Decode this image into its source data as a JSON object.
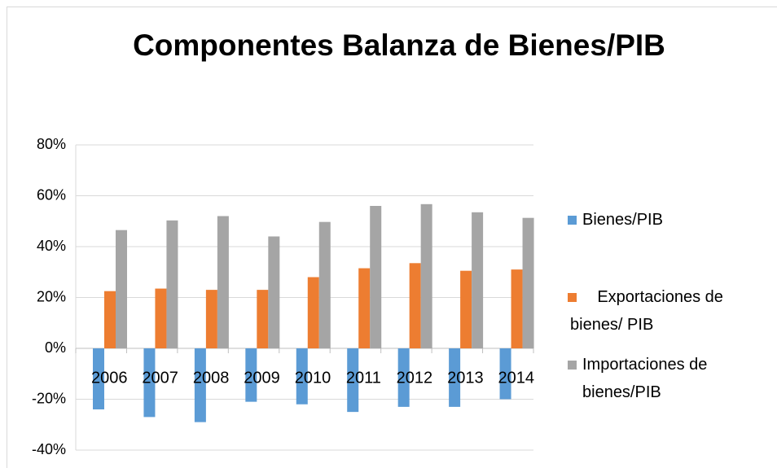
{
  "chart_data": {
    "type": "bar",
    "title": "Componentes Balanza de Bienes/PIB",
    "categories": [
      "2006",
      "2007",
      "2008",
      "2009",
      "2010",
      "2011",
      "2012",
      "2013",
      "2014"
    ],
    "series": [
      {
        "name": "Bienes/PIB",
        "color": "#5b9bd5",
        "values": [
          -24,
          -27,
          -29,
          -21,
          -22,
          -25,
          -23,
          -23,
          -20
        ]
      },
      {
        "name": "      Exportaciones de bienes/ PIB",
        "color": "#ed7d31",
        "values": [
          22.5,
          23.5,
          23,
          23,
          28,
          31.5,
          33.5,
          30.5,
          31
        ]
      },
      {
        "name": "Importaciones de bienes/PIB",
        "color": "#a5a5a5",
        "values": [
          46.5,
          50.3,
          52,
          44,
          49.7,
          56,
          56.7,
          53.5,
          51.3
        ]
      }
    ],
    "ylim": [
      -40,
      80
    ],
    "yticks": [
      {
        "value": -40,
        "label": "-40%"
      },
      {
        "value": -20,
        "label": "-20%"
      },
      {
        "value": 0,
        "label": "0%"
      },
      {
        "value": 20,
        "label": "20%"
      },
      {
        "value": 40,
        "label": "40%"
      },
      {
        "value": 60,
        "label": "60%"
      },
      {
        "value": 80,
        "label": "80%"
      }
    ],
    "grid": true,
    "legend": "right"
  }
}
